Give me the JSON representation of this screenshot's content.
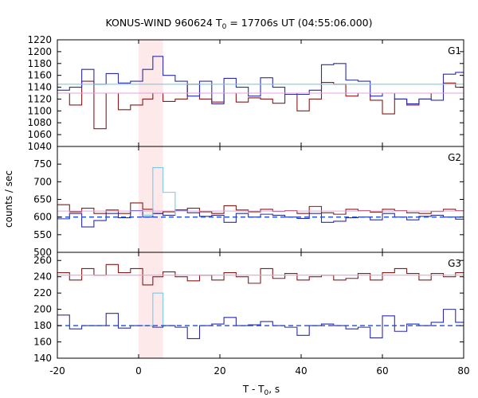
{
  "chart_data": {
    "type": "line",
    "title": "KONUS-WIND 960624 T",
    "title_sub": "0",
    "title_rest": " = 17706s UT (04:55:06.000)",
    "xlabel": "T - T",
    "xlabel_sub": "0",
    "xlabel_rest": ", s",
    "ylabel": "counts / sec",
    "xlim": [
      -20,
      80
    ],
    "xticks": [
      -20,
      0,
      20,
      40,
      60,
      80
    ],
    "highlight": {
      "x": [
        0,
        6
      ],
      "color": "#fde8ea"
    },
    "grid": false,
    "legend": "none",
    "colors": {
      "red": "#8b1a1a",
      "blue": "#2b2bb0",
      "cyan": "#7ec8e3",
      "pink": "#e8a0e0",
      "bg_dash": "#1a4fd6"
    },
    "panels": [
      {
        "name": "G1",
        "ylim": [
          1040,
          1220
        ],
        "yticks": [
          1040,
          1060,
          1080,
          1100,
          1120,
          1140,
          1160,
          1180,
          1200,
          1220
        ],
        "series": [
          {
            "color": "red",
            "x": [
              -20,
              -17,
              -14,
              -11,
              -8,
              -5,
              -2,
              1,
              3.5,
              6,
              9,
              12,
              15,
              18,
              21,
              24,
              27,
              30,
              33,
              36,
              39,
              42,
              45,
              48,
              51,
              54,
              57,
              60,
              63,
              66,
              69,
              72,
              75,
              78,
              80
            ],
            "y": [
              1130,
              1110,
              1150,
              1070,
              1130,
              1102,
              1110,
              1120,
              1130,
              1116,
              1120,
              1145,
              1120,
              1115,
              1130,
              1115,
              1122,
              1120,
              1113,
              1130,
              1100,
              1120,
              1148,
              1145,
              1125,
              1130,
              1118,
              1095,
              1120,
              1110,
              1120,
              1130,
              1147,
              1140,
              1140
            ]
          },
          {
            "color": "blue",
            "x": [
              -20,
              -17,
              -14,
              -11,
              -8,
              -5,
              -2,
              1,
              3.5,
              6,
              9,
              12,
              15,
              18,
              21,
              24,
              27,
              30,
              33,
              36,
              39,
              42,
              45,
              48,
              51,
              54,
              57,
              60,
              63,
              66,
              69,
              72,
              75,
              78,
              80
            ],
            "y": [
              1135,
              1140,
              1170,
              1145,
              1163,
              1147,
              1150,
              1170,
              1192,
              1160,
              1150,
              1125,
              1150,
              1112,
              1155,
              1140,
              1125,
              1156,
              1140,
              1128,
              1128,
              1135,
              1178,
              1180,
              1152,
              1150,
              1125,
              1130,
              1120,
              1112,
              1120,
              1118,
              1162,
              1165,
              1165
            ]
          },
          {
            "color": "cyan",
            "x": [
              -20,
              80
            ],
            "y": [
              1145,
              1145
            ],
            "style": "line"
          },
          {
            "color": "pink",
            "x": [
              -20,
              80
            ],
            "y": [
              1130,
              1130
            ],
            "style": "line"
          }
        ]
      },
      {
        "name": "G2",
        "ylim": [
          500,
          800
        ],
        "yticks": [
          500,
          550,
          600,
          650,
          700,
          750
        ],
        "series": [
          {
            "color": "red",
            "x": [
              -20,
              -17,
              -14,
              -11,
              -8,
              -5,
              -2,
              1,
              3.5,
              6,
              9,
              12,
              15,
              18,
              21,
              24,
              27,
              30,
              33,
              36,
              39,
              42,
              45,
              48,
              51,
              54,
              57,
              60,
              63,
              66,
              69,
              72,
              75,
              78,
              80
            ],
            "y": [
              635,
              615,
              625,
              610,
              620,
              610,
              640,
              622,
              610,
              615,
              620,
              625,
              615,
              610,
              632,
              620,
              615,
              622,
              616,
              618,
              610,
              630,
              612,
              608,
              622,
              618,
              614,
              622,
              618,
              612,
              610,
              616,
              622,
              618,
              618
            ]
          },
          {
            "color": "blue",
            "x": [
              -20,
              -17,
              -14,
              -11,
              -8,
              -5,
              -2,
              1,
              3.5,
              6,
              9,
              12,
              15,
              18,
              21,
              24,
              27,
              30,
              33,
              36,
              39,
              42,
              45,
              48,
              51,
              54,
              57,
              60,
              63,
              66,
              69,
              72,
              75,
              78,
              80
            ],
            "y": [
              595,
              610,
              572,
              590,
              610,
              598,
              618,
              600,
              610,
              605,
              620,
              612,
              602,
              605,
              585,
              610,
              600,
              608,
              605,
              600,
              596,
              610,
              585,
              588,
              598,
              600,
              592,
              610,
              600,
              592,
              602,
              605,
              600,
              594,
              594
            ]
          },
          {
            "color": "cyan",
            "x": [
              1,
              3.5,
              6,
              9
            ],
            "y": [
              605,
              740,
              670,
              605
            ],
            "style": "step"
          },
          {
            "color": "pink",
            "x": [
              -20,
              80
            ],
            "y": [
              617,
              617
            ],
            "style": "line"
          },
          {
            "color": "bg_dash",
            "x": [
              -20,
              80
            ],
            "y": [
              600,
              600
            ],
            "style": "dash"
          }
        ]
      },
      {
        "name": "G3",
        "ylim": [
          140,
          270
        ],
        "yticks": [
          140,
          160,
          180,
          200,
          220,
          240,
          260
        ],
        "series": [
          {
            "color": "red",
            "x": [
              -20,
              -17,
              -14,
              -11,
              -8,
              -5,
              -2,
              1,
              3.5,
              6,
              9,
              12,
              15,
              18,
              21,
              24,
              27,
              30,
              33,
              36,
              39,
              42,
              45,
              48,
              51,
              54,
              57,
              60,
              63,
              66,
              69,
              72,
              75,
              78,
              80
            ],
            "y": [
              245,
              236,
              250,
              242,
              255,
              245,
              250,
              230,
              240,
              246,
              240,
              235,
              242,
              236,
              245,
              240,
              232,
              250,
              238,
              244,
              236,
              240,
              242,
              236,
              238,
              244,
              236,
              245,
              250,
              244,
              236,
              244,
              240,
              245,
              245
            ]
          },
          {
            "color": "blue",
            "x": [
              -20,
              -17,
              -14,
              -11,
              -8,
              -5,
              -2,
              1,
              3.5,
              6,
              9,
              12,
              15,
              18,
              21,
              24,
              27,
              30,
              33,
              36,
              39,
              42,
              45,
              48,
              51,
              54,
              57,
              60,
              63,
              66,
              69,
              72,
              75,
              78,
              80
            ],
            "y": [
              193,
              176,
              180,
              180,
              195,
              177,
              180,
              180,
              178,
              180,
              178,
              164,
              180,
              182,
              190,
              180,
              181,
              185,
              180,
              178,
              168,
              180,
              182,
              180,
              176,
              178,
              165,
              192,
              173,
              182,
              180,
              184,
              200,
              184,
              184
            ]
          },
          {
            "color": "cyan",
            "x": [
              1,
              3.5,
              6
            ],
            "y": [
              180,
              220,
              180
            ],
            "style": "step"
          },
          {
            "color": "pink",
            "x": [
              -20,
              80
            ],
            "y": [
              242,
              242
            ],
            "style": "line"
          },
          {
            "color": "bg_dash",
            "x": [
              -20,
              80
            ],
            "y": [
              180,
              180
            ],
            "style": "dash"
          }
        ]
      }
    ]
  }
}
